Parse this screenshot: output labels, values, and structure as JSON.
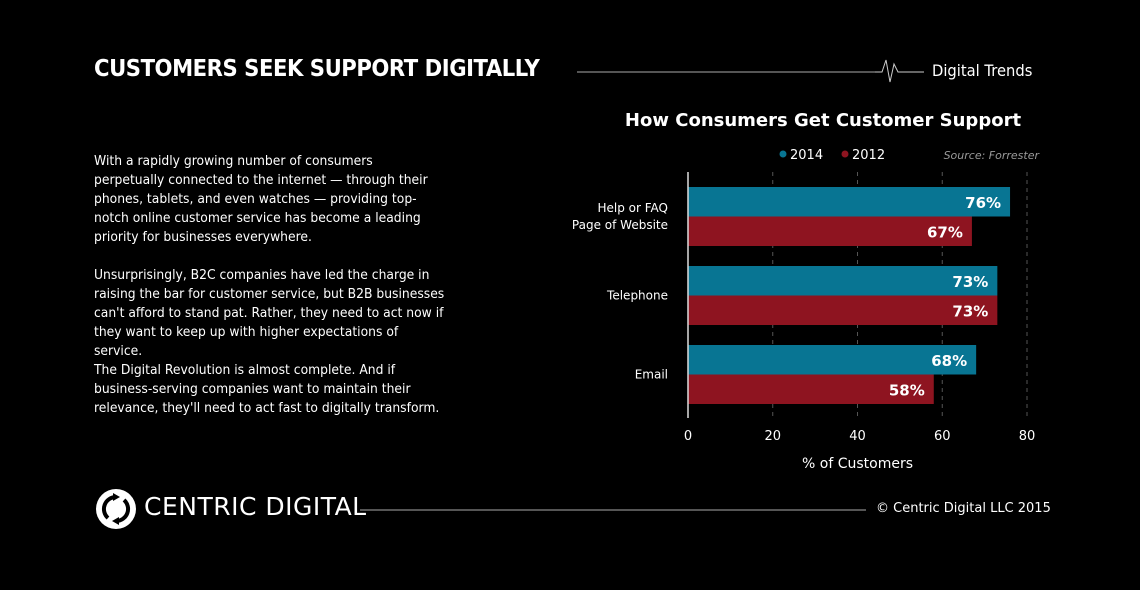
{
  "header": {
    "title": "CUSTOMERS SEEK SUPPORT DIGITALLY",
    "section": "Digital Trends"
  },
  "body": {
    "paragraphs": [
      "With a rapidly growing number of consumers perpetually connected to the internet — through their phones, tablets, and even watches — providing top-notch online customer service has become a leading priority for businesses everywhere.",
      "Unsurprisingly, B2C companies have led the charge in raising the bar for customer service, but B2B businesses can't afford to stand pat. Rather, they need to act now if they want to keep up with higher expectations of service.",
      "The Digital Revolution is almost complete. And if business-serving companies want to maintain their relevance, they'll need to act fast to digitally transform."
    ]
  },
  "chart_data": {
    "type": "bar",
    "orientation": "horizontal",
    "title": "How Consumers Get Customer Support",
    "source": "Source:  Forrester",
    "categories": [
      "Help or FAQ Page of Website",
      "Telephone",
      "Email"
    ],
    "category_lines": [
      [
        "Help or FAQ",
        "Page of Website"
      ],
      [
        "Telephone"
      ],
      [
        "Email"
      ]
    ],
    "series": [
      {
        "name": "2014",
        "color": "#087593",
        "values": [
          76,
          73,
          68
        ],
        "labels": [
          "76%",
          "73%",
          "68%"
        ]
      },
      {
        "name": "2012",
        "color": "#8e1420",
        "values": [
          67,
          73,
          58
        ],
        "labels": [
          "67%",
          "73%",
          "58%"
        ]
      }
    ],
    "xlabel": "% of Customers",
    "xlim": [
      0,
      80
    ],
    "xticks": [
      0,
      20,
      40,
      60,
      80
    ],
    "grid": "vertical dashed",
    "legend": "top"
  },
  "footer": {
    "brand": "CENTRIC DIGITAL",
    "copyright": "© Centric Digital LLC 2015"
  }
}
